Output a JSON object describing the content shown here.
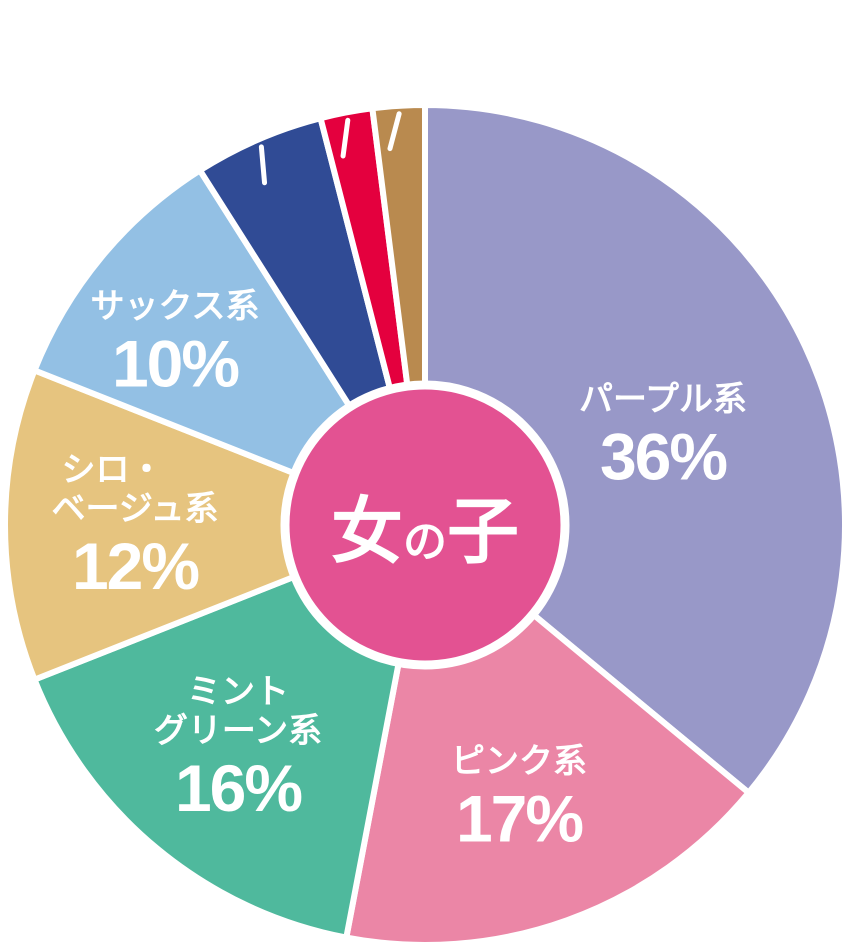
{
  "chart_data": {
    "type": "pie",
    "title": "",
    "center_label": {
      "main1": "女",
      "small": "の",
      "main2": "子"
    },
    "start": "top",
    "direction": "clockwise",
    "slices": [
      {
        "name": "パープル系",
        "value": 36,
        "label": "36%",
        "color": "#9898c8"
      },
      {
        "name": "ピンク系",
        "value": 17,
        "label": "17%",
        "color": "#eb86a6"
      },
      {
        "name": "ミント グリーン系",
        "line1": "ミント",
        "line2": "グリーン系",
        "value": 16,
        "label": "16%",
        "color": "#4fb99d"
      },
      {
        "name": "シロ・ ベージュ系",
        "line1": "シロ・",
        "line2": "ベージュ系",
        "value": 12,
        "label": "12%",
        "color": "#e6c47f"
      },
      {
        "name": "サックス系",
        "value": 10,
        "label": "10%",
        "color": "#93c0e4"
      },
      {
        "name": "",
        "value": 5,
        "color": "#304b95"
      },
      {
        "name": "",
        "value": 2,
        "color": "#e4003e"
      },
      {
        "name": "",
        "value": 2,
        "color": "#b98a4f"
      }
    ],
    "center_color": "#e35292"
  }
}
